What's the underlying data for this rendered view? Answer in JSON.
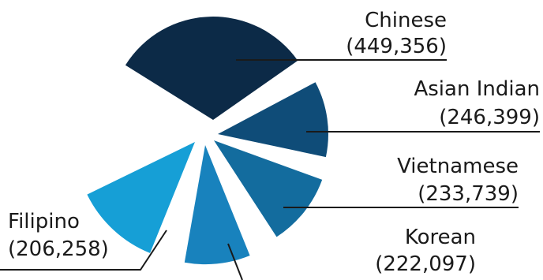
{
  "chart_data": {
    "type": "pie",
    "title": "",
    "legend": "none",
    "slices": [
      {
        "label": "Chinese",
        "value": 449356,
        "value_text": "(449,356)",
        "color": "#0c2a47"
      },
      {
        "label": "Asian Indian",
        "value": 246399,
        "value_text": "(246,399)",
        "color": "#0f4c78"
      },
      {
        "label": "Vietnamese",
        "value": 233739,
        "value_text": "(233,739)",
        "color": "#136c9e"
      },
      {
        "label": "Korean",
        "value": 222097,
        "value_text": "(222,097)",
        "color": "#1882bd"
      },
      {
        "label": "Filipino",
        "value": 206258,
        "value_text": "(206,258)",
        "color": "#169fd6"
      }
    ]
  }
}
